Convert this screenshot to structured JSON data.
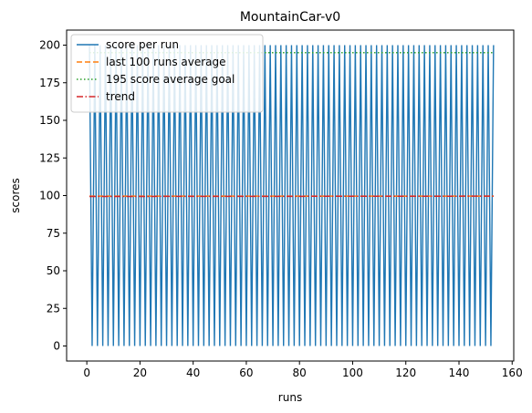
{
  "chart_data": {
    "type": "line",
    "title": "MountainCar-v0",
    "xlabel": "runs",
    "ylabel": "scores",
    "xlim": [
      -7.6,
      160.6
    ],
    "ylim": [
      -10,
      210
    ],
    "xticks": [
      0,
      20,
      40,
      60,
      80,
      100,
      120,
      140,
      160
    ],
    "yticks": [
      0,
      25,
      50,
      75,
      100,
      125,
      150,
      175,
      200
    ],
    "grid": false,
    "legend_position": "upper-left",
    "series": [
      {
        "name": "score per run",
        "style": "solid",
        "color": "#1f77b4",
        "pattern": "alternating",
        "x_start": 1,
        "x_end": 153,
        "values_cycle": [
          200,
          0
        ]
      },
      {
        "name": "last 100 runs average",
        "style": "dashed",
        "color": "#ff7f0e",
        "x": [
          1,
          153
        ],
        "values": [
          99.6,
          99.6
        ]
      },
      {
        "name": "195 score average goal",
        "style": "dotted",
        "color": "#2ca02c",
        "x": [
          1,
          153
        ],
        "values": [
          195,
          195
        ]
      },
      {
        "name": "trend",
        "style": "dashdot",
        "color": "#d62728",
        "x": [
          1,
          153
        ],
        "values": [
          99.4,
          99.6
        ]
      }
    ]
  }
}
